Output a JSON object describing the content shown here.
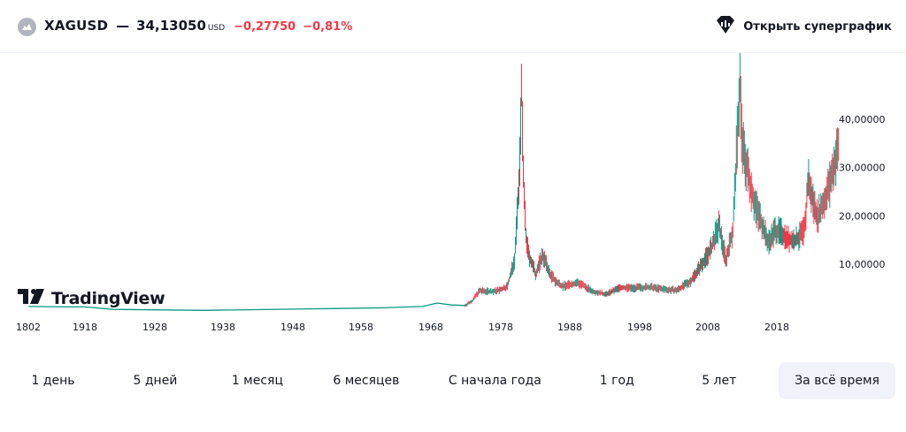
{
  "header": {
    "symbol": "XAGUSD",
    "separator": "—",
    "price": "34,13050",
    "currency": "USD",
    "change": "−0,27750",
    "change_pct": "−0,81%",
    "supergraph_label": "Открыть суперграфик",
    "colors": {
      "negative": "#f23645",
      "text": "#131722"
    }
  },
  "logo": {
    "text": "TradingView",
    "icon": "tradingview-logo-icon"
  },
  "ranges": {
    "items": [
      {
        "label": "1 день"
      },
      {
        "label": "5 дней"
      },
      {
        "label": "1 месяц"
      },
      {
        "label": "6 месяцев"
      },
      {
        "label": "С начала года"
      },
      {
        "label": "1 год"
      },
      {
        "label": "5 лет"
      },
      {
        "label": "За всё время",
        "active": true
      }
    ]
  },
  "chart_data": {
    "type": "line",
    "title": "",
    "xlabel": "",
    "ylabel": "",
    "x_ticks": [
      "1802",
      "1918",
      "1928",
      "1938",
      "1948",
      "1958",
      "1968",
      "1978",
      "1988",
      "1998",
      "2008",
      "2018"
    ],
    "y_ticks": [
      "10,00000",
      "20,00000",
      "30,00000",
      "40,00000"
    ],
    "ylim": [
      0,
      50
    ],
    "series": [
      {
        "x": [
          1802,
          1880,
          1918,
          1922,
          1935,
          1950,
          1960,
          1966,
          1968,
          1970,
          1972,
          1973,
          1974,
          1976,
          1977,
          1978,
          1979,
          1979.7,
          1980.0,
          1980.2,
          1980.6,
          1981,
          1982,
          1983,
          1984,
          1985,
          1986,
          1988,
          1990,
          1992,
          1994,
          1996,
          1998,
          2000,
          2002,
          2004,
          2006,
          2007,
          2008,
          2009,
          2010,
          2011.0,
          2011.3,
          2011.8,
          2012,
          2013,
          2014,
          2015,
          2016,
          2017,
          2018,
          2019,
          2020.2,
          2020.7,
          2021,
          2022,
          2023,
          2024,
          2024.8,
          2025
        ],
        "y": [
          1.3,
          1.2,
          1.2,
          0.7,
          0.5,
          0.8,
          1.0,
          1.3,
          2.0,
          1.6,
          1.5,
          2.5,
          4.5,
          4.4,
          4.7,
          5.5,
          11,
          28,
          48,
          30,
          16,
          12,
          8,
          12,
          8,
          6.2,
          5.5,
          6.2,
          4.5,
          3.8,
          5.2,
          5.1,
          5.3,
          4.9,
          4.6,
          6.5,
          11,
          13.5,
          18,
          11,
          17,
          48,
          35,
          31,
          30,
          23,
          19,
          14.5,
          17,
          16.5,
          15,
          15,
          17,
          28,
          25,
          20,
          23,
          28,
          33,
          34.1
        ]
      }
    ],
    "colors": {
      "up": "#089981",
      "down": "#f23645",
      "flat": "#089981"
    },
    "grid": false,
    "price_scale_position": "right"
  }
}
